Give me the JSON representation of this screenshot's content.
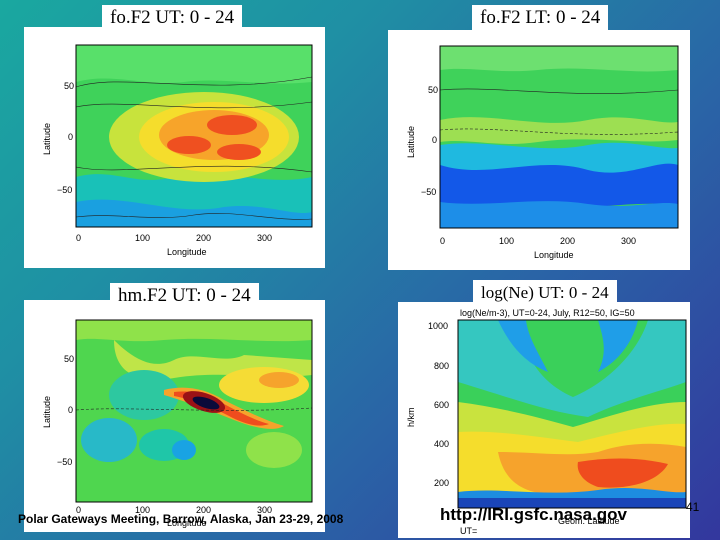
{
  "captions": {
    "p1": "fo.F2  UT: 0 - 24",
    "p2": "fo.F2  LT: 0 - 24",
    "p3": "hm.F2  UT: 0 - 24",
    "p4": "log(Ne)  UT: 0 - 24"
  },
  "maps": {
    "ylabel": "Latitude",
    "xlabel": "Longitude",
    "yticks": [
      "50",
      "0",
      "−50"
    ],
    "xticks": [
      "0",
      "100",
      "200",
      "300"
    ]
  },
  "profile": {
    "title": "log(Ne/m-3), UT=0-24, July, R12=50, IG=50",
    "ylabel": "h/km",
    "yticks": [
      "1000",
      "800",
      "600",
      "400",
      "200"
    ],
    "xlabel": "Geom. Latitude",
    "ut": "UT="
  },
  "footer": {
    "meeting": "Polar Gateways Meeting, Barrow, Alaska, Jan 23-29, 2008",
    "url": "http://IRI.gsfc.nasa.gov",
    "page": "41"
  },
  "colors": {
    "background_start": "#1aa8a0",
    "background_end": "#33379e"
  }
}
